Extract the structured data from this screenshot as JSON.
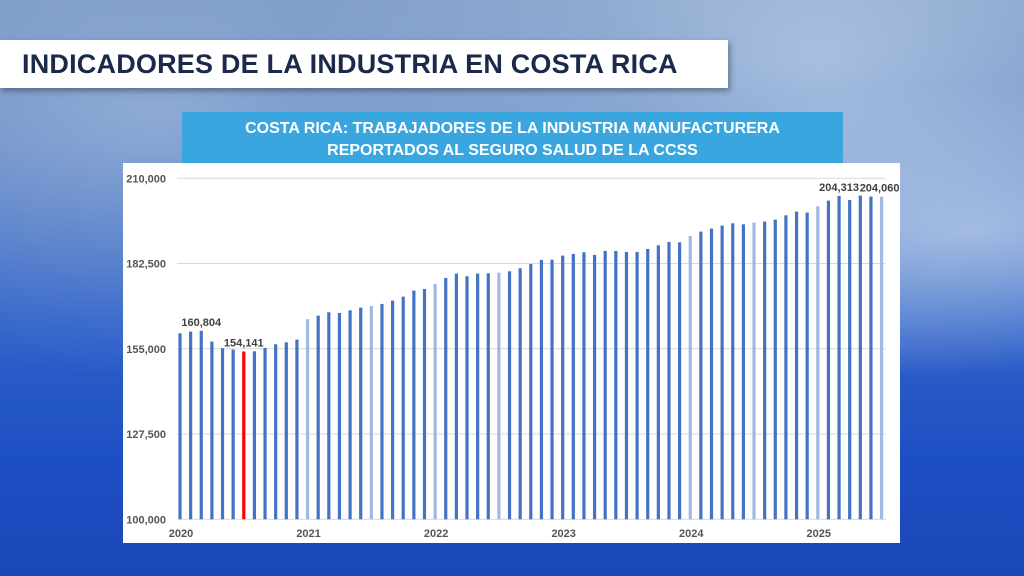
{
  "header": {
    "title": "INDICADORES DE LA INDUSTRIA EN COSTA RICA"
  },
  "chart_data": {
    "type": "bar",
    "title_lines": [
      "COSTA RICA: TRABAJADORES DE LA INDUSTRIA MANUFACTURERA",
      "REPORTADOS AL SEGURO SALUD DE LA CCSS"
    ],
    "xlabel": "",
    "ylabel": "",
    "ylim": [
      100000,
      210000
    ],
    "yticks": [
      100000,
      127500,
      155000,
      182500,
      210000
    ],
    "ytick_labels": [
      "100,000",
      "127,500",
      "155,000",
      "182,500",
      "210,000"
    ],
    "xtick_labels": [
      {
        "label": "2020",
        "index": 0
      },
      {
        "label": "2021",
        "index": 12
      },
      {
        "label": "2022",
        "index": 24
      },
      {
        "label": "2023",
        "index": 36
      },
      {
        "label": "2024",
        "index": 48
      },
      {
        "label": "2025",
        "index": 60
      }
    ],
    "grid": true,
    "start": "2020-01",
    "frequency": "monthly",
    "values": [
      160000,
      160550,
      160804,
      157330,
      155180,
      154750,
      154141,
      154200,
      155280,
      156460,
      157100,
      157970,
      164530,
      165710,
      166790,
      166570,
      167430,
      168290,
      168830,
      169480,
      170550,
      171840,
      173770,
      174310,
      175920,
      177860,
      179260,
      178400,
      179260,
      179360,
      179580,
      180010,
      180980,
      182370,
      183660,
      183770,
      185060,
      185600,
      186140,
      185280,
      186570,
      186570,
      186250,
      186250,
      187210,
      188390,
      189470,
      189360,
      191400,
      192800,
      193770,
      194740,
      195490,
      195160,
      195700,
      196030,
      196670,
      198070,
      199250,
      198930,
      200970,
      202800,
      204313,
      203010,
      204410,
      204090,
      204060
    ],
    "data_labels": [
      {
        "index": 2,
        "text": "160,804"
      },
      {
        "index": 6,
        "text": "154,141"
      },
      {
        "index": 62,
        "text": "204,313"
      },
      {
        "index": 66,
        "text": "204,060"
      }
    ],
    "highlight_index": 6,
    "light_indices": [
      12,
      18,
      24,
      30,
      48,
      54,
      60,
      66
    ],
    "colors": {
      "bar": "#4472C4",
      "light": "#9fb9e3",
      "highlight": "#ff0000",
      "grid": "#d9d9d9"
    }
  }
}
